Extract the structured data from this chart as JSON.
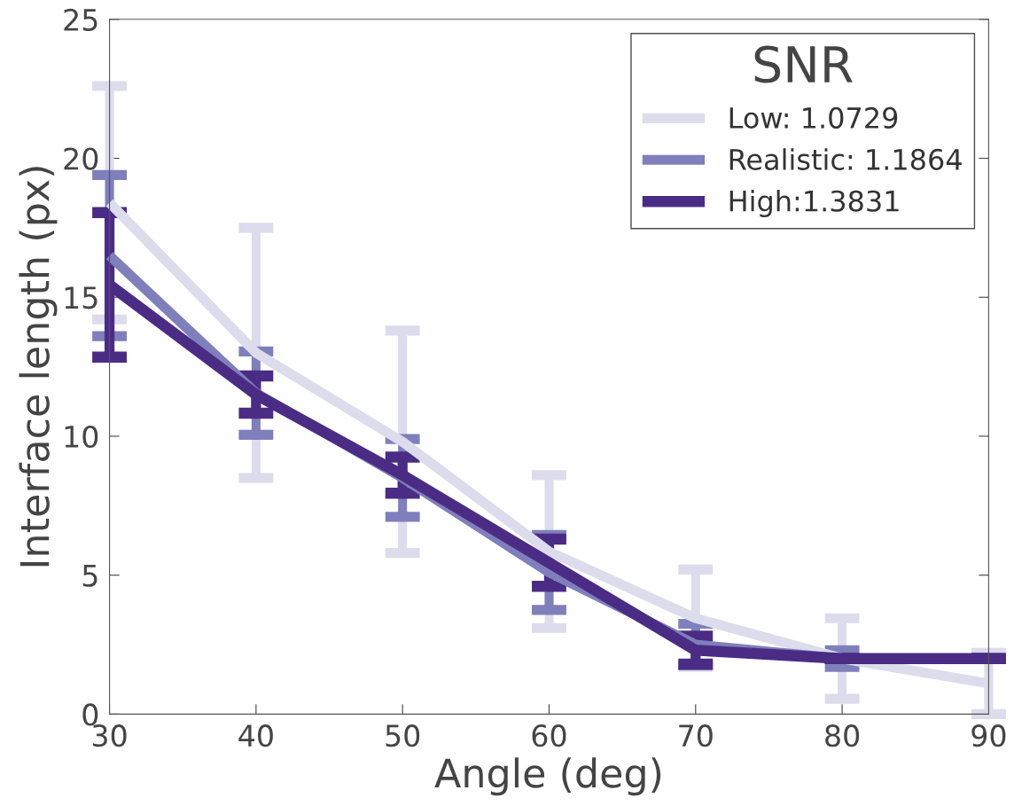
{
  "chart_data": {
    "type": "line",
    "xlabel": "Angle (deg)",
    "ylabel": "Interface length (px)",
    "legend_title": "SNR",
    "x": [
      30,
      40,
      50,
      60,
      70,
      80,
      90
    ],
    "series": [
      {
        "name": "Low: 1.0729",
        "color": "#dcdcec",
        "values": [
          18.4,
          13.0,
          9.8,
          5.85,
          3.45,
          2.0,
          1.1
        ],
        "errors": [
          4.2,
          4.5,
          4.0,
          2.75,
          1.75,
          1.45,
          1.1
        ]
      },
      {
        "name": "Realistic: 1.1864",
        "color": "#7f7fbb",
        "values": [
          16.5,
          11.55,
          8.5,
          5.1,
          2.5,
          2.0,
          2.0
        ],
        "errors": [
          2.9,
          1.5,
          1.4,
          1.35,
          0.75,
          0.3,
          null
        ]
      },
      {
        "name": "High:1.3831",
        "color": "#4b2c85",
        "values": [
          15.45,
          11.5,
          8.6,
          5.45,
          2.3,
          2.0,
          2.0
        ],
        "errors": [
          2.6,
          0.67,
          0.65,
          0.85,
          0.5,
          null,
          null
        ]
      }
    ],
    "xlim": [
      30,
      90
    ],
    "xticks": [
      30,
      40,
      50,
      60,
      70,
      80,
      90
    ],
    "ylim": [
      0,
      25
    ],
    "yticks": [
      0,
      5,
      10,
      15,
      20,
      25
    ],
    "grid": false,
    "legend": "top right",
    "marker": "none",
    "line_style": "solid"
  }
}
